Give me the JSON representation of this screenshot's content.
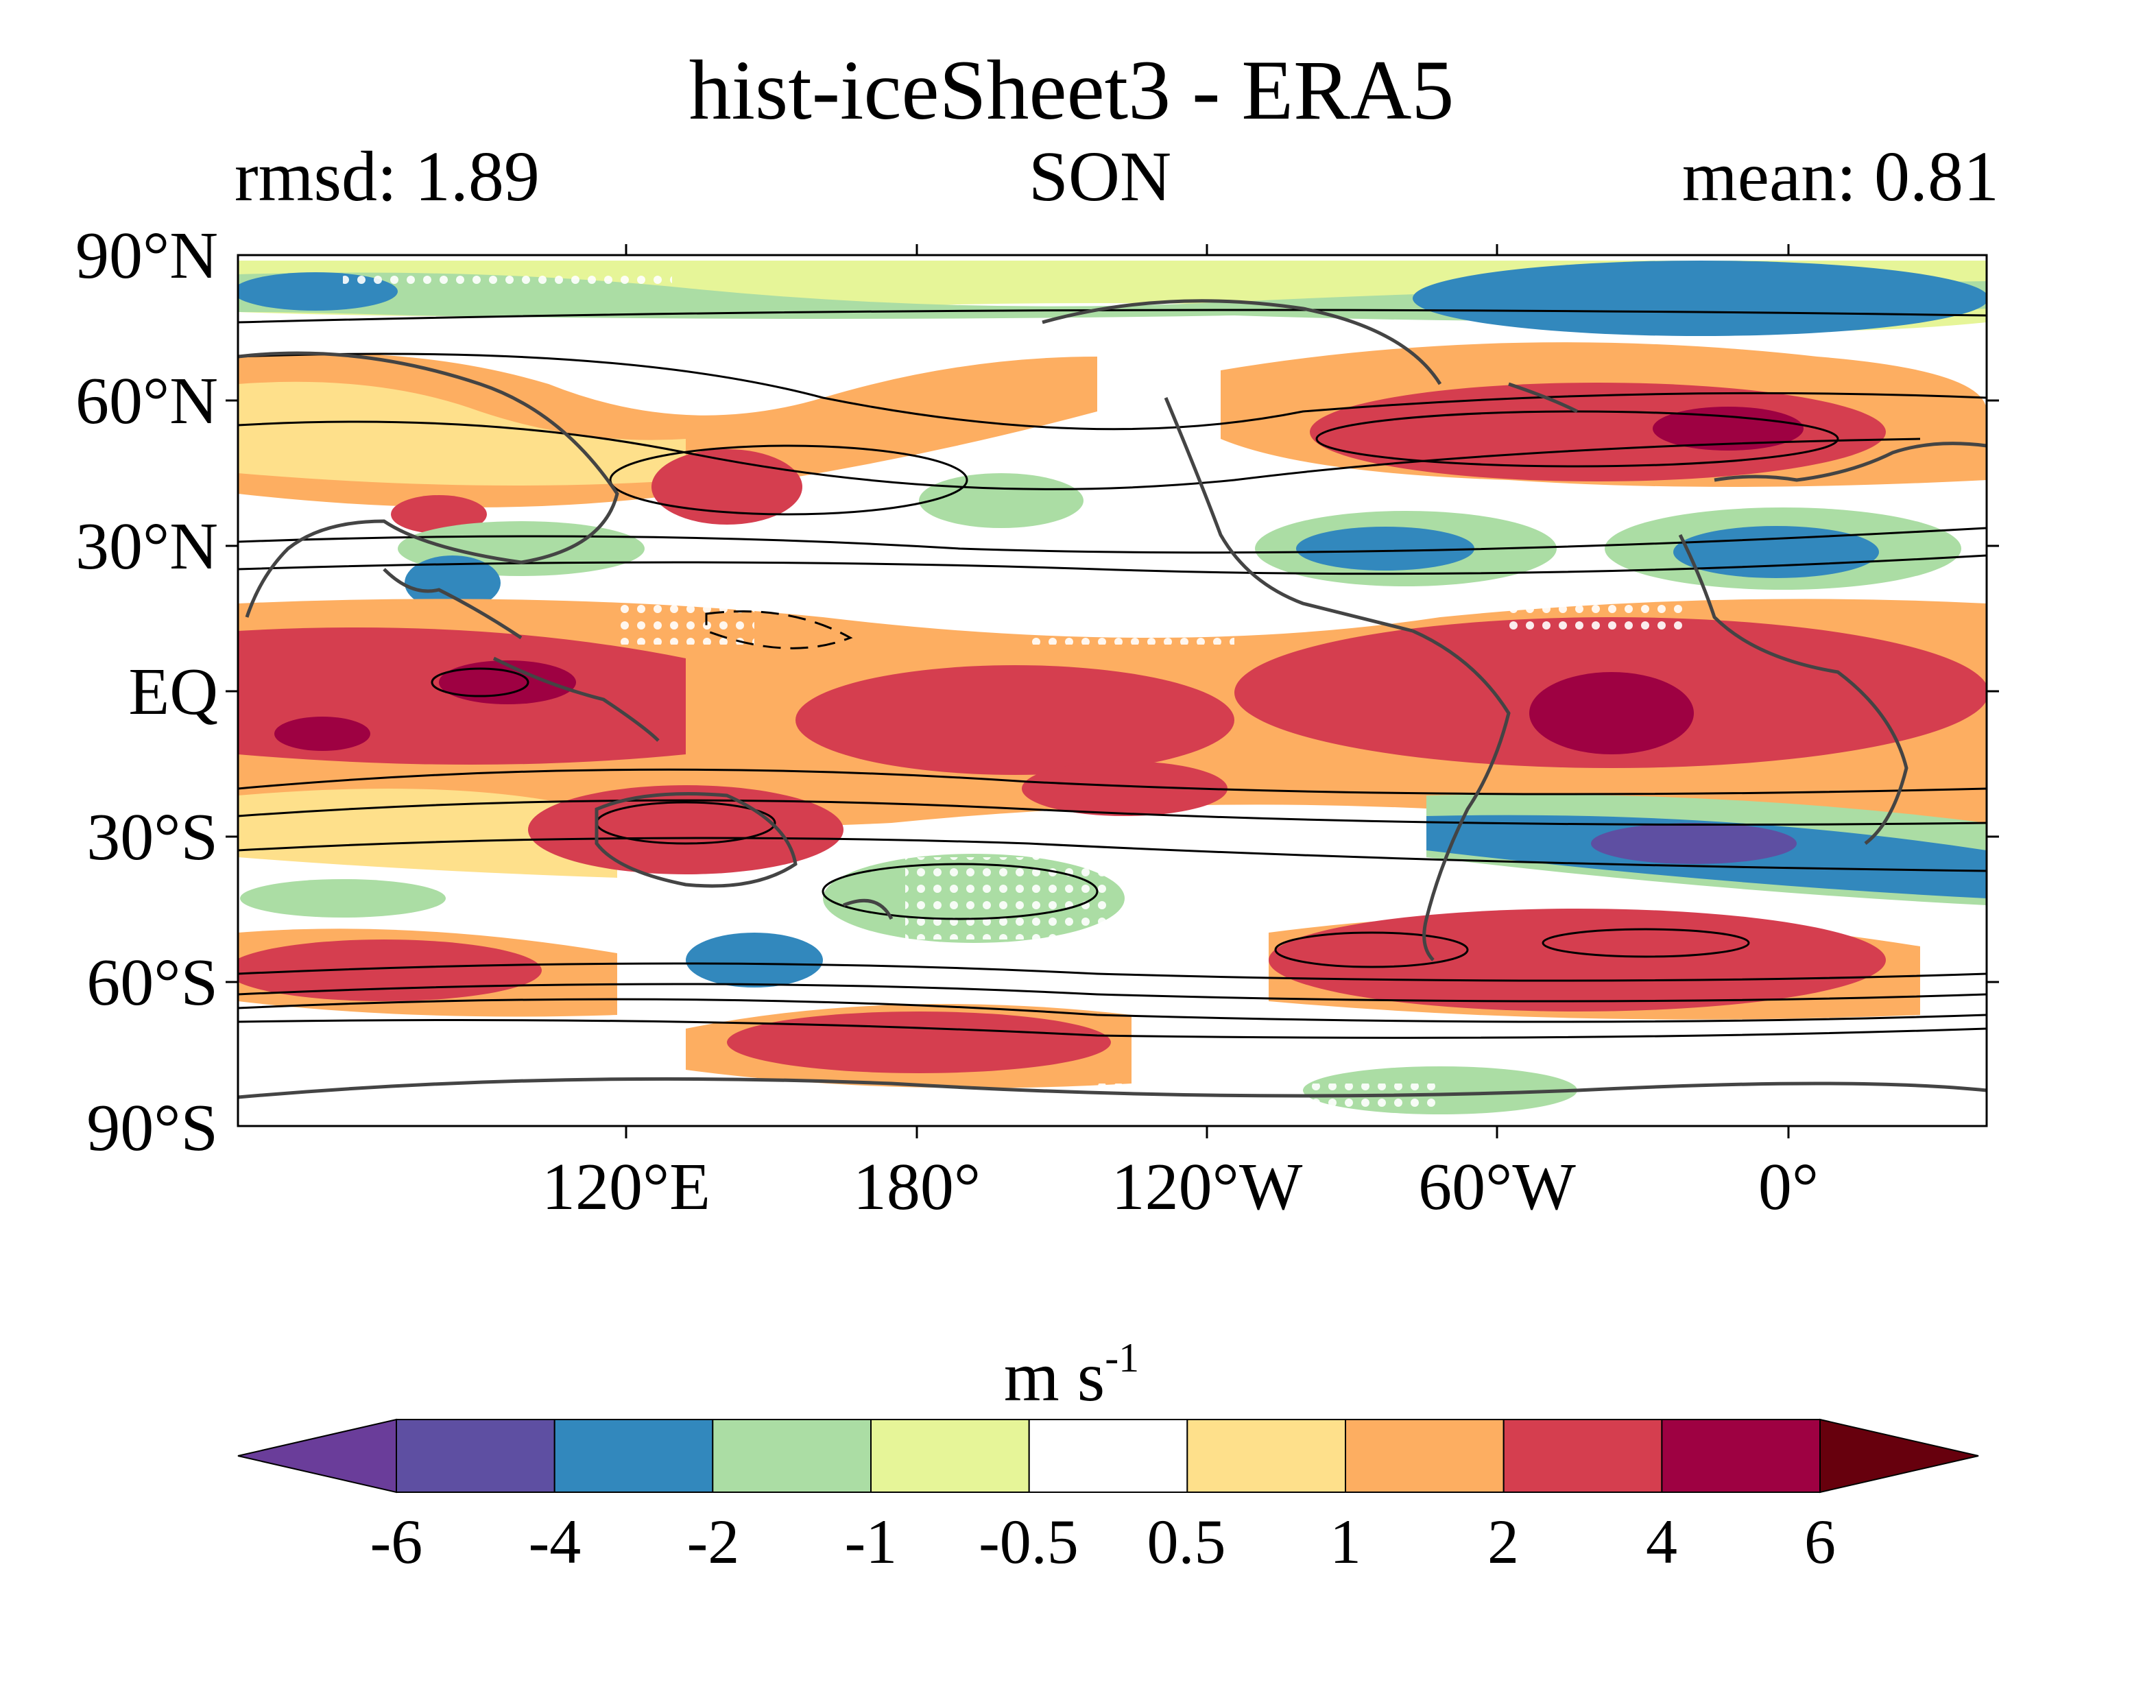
{
  "title": "hist-iceSheet3 - ERA5",
  "stats": {
    "rmsd": "rmsd: 1.89",
    "season": "SON",
    "mean": "mean: 0.81"
  },
  "lat_labels": [
    "90°N",
    "60°N",
    "30°N",
    "EQ",
    "30°S",
    "60°S",
    "90°S"
  ],
  "lon_labels": [
    "120°E",
    "180°",
    "120°W",
    "60°W",
    "0°"
  ],
  "colorbar": {
    "unit": "m s",
    "unit_exp": "-1",
    "tick_labels": [
      "-6",
      "-4",
      "-2",
      "-1",
      "-0.5",
      "0.5",
      "1",
      "2",
      "4",
      "6"
    ],
    "levels": [
      -6,
      -4,
      -2,
      -1,
      -0.5,
      0.5,
      1,
      2,
      4,
      6
    ],
    "colors": [
      "#5e4fa2",
      "#3288bd",
      "#abdda4",
      "#e6f598",
      "#ffffff",
      "#fee08b",
      "#fdae61",
      "#d53e4f",
      "#9e0142"
    ],
    "under_color": "#6a3d9a",
    "over_color": "#67000d"
  }
}
